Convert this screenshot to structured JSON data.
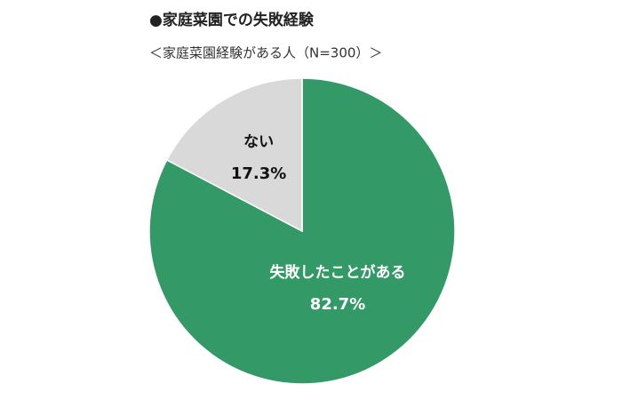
{
  "chart_data": {
    "type": "pie",
    "title": "●家庭菜園での失敗経験",
    "subtitle": "＜家庭菜園経験がある人（N=300）＞",
    "categories": [
      "失敗したことがある",
      "ない"
    ],
    "values": [
      82.7,
      17.3
    ],
    "value_labels": [
      "82.7%",
      "17.3%"
    ],
    "colors": [
      "#339966",
      "#d9d9d9"
    ]
  }
}
